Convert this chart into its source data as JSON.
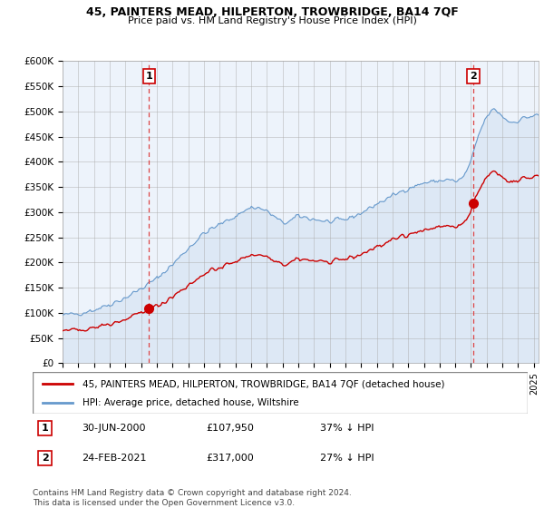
{
  "title": "45, PAINTERS MEAD, HILPERTON, TROWBRIDGE, BA14 7QF",
  "subtitle": "Price paid vs. HM Land Registry's House Price Index (HPI)",
  "ylabel_ticks": [
    "£0",
    "£50K",
    "£100K",
    "£150K",
    "£200K",
    "£250K",
    "£300K",
    "£350K",
    "£400K",
    "£450K",
    "£500K",
    "£550K",
    "£600K"
  ],
  "ytick_values": [
    0,
    50000,
    100000,
    150000,
    200000,
    250000,
    300000,
    350000,
    400000,
    450000,
    500000,
    550000,
    600000
  ],
  "sale1_date_x": 2000.5,
  "sale1_price": 107950,
  "sale1_label": "1",
  "sale2_date_x": 2021.15,
  "sale2_price": 317000,
  "sale2_label": "2",
  "legend_property": "45, PAINTERS MEAD, HILPERTON, TROWBRIDGE, BA14 7QF (detached house)",
  "legend_hpi": "HPI: Average price, detached house, Wiltshire",
  "table_rows": [
    [
      "1",
      "30-JUN-2000",
      "£107,950",
      "37% ↓ HPI"
    ],
    [
      "2",
      "24-FEB-2021",
      "£317,000",
      "27% ↓ HPI"
    ]
  ],
  "footer": "Contains HM Land Registry data © Crown copyright and database right 2024.\nThis data is licensed under the Open Government Licence v3.0.",
  "property_color": "#cc0000",
  "hpi_color": "#6699cc",
  "hpi_fill_color": "#dde8f5",
  "vline_color": "#dd4444",
  "background_color": "#ffffff",
  "chart_bg_color": "#edf3fb",
  "xlim_left": 1995.0,
  "xlim_right": 2025.3,
  "ylim": [
    0,
    600000
  ]
}
